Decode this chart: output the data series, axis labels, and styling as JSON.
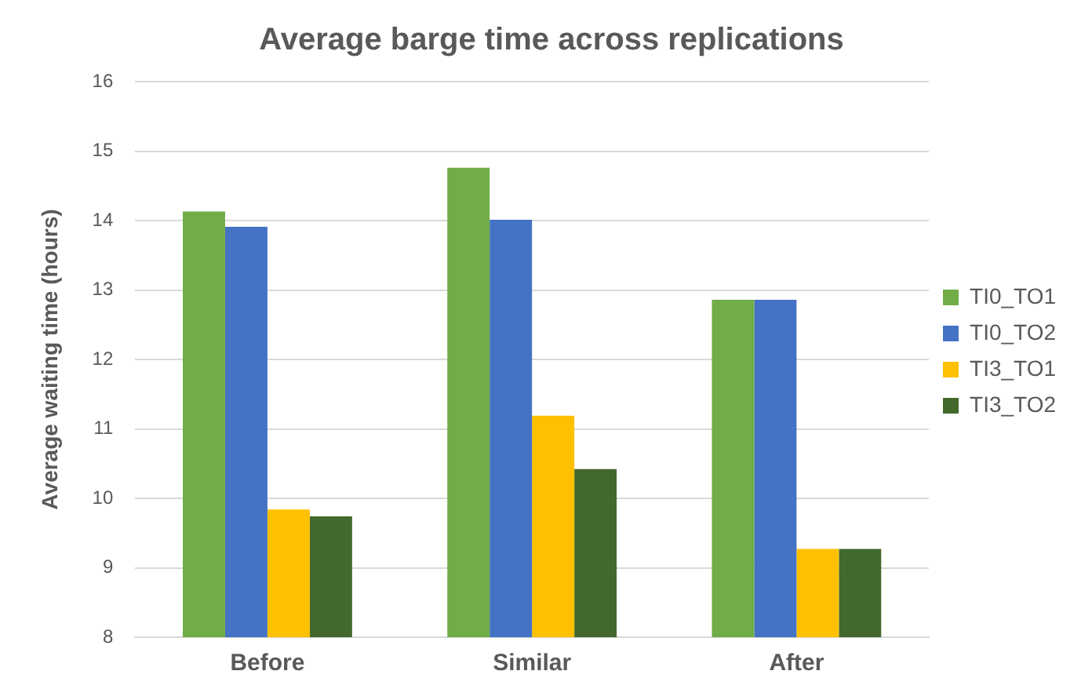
{
  "chart_data": {
    "type": "bar",
    "title": "Average barge time across replications",
    "ylabel": "Average waiting time (hours)",
    "categories": [
      "Before",
      "Similar",
      "After"
    ],
    "series": [
      {
        "name": "TI0_TO1",
        "color": "#70ad47",
        "values": [
          14.13,
          14.76,
          12.86
        ]
      },
      {
        "name": "TI0_TO2",
        "color": "#4472c4",
        "values": [
          13.91,
          14.01,
          12.86
        ]
      },
      {
        "name": "TI3_TO1",
        "color": "#ffc000",
        "values": [
          9.84,
          11.19,
          9.27
        ]
      },
      {
        "name": "TI3_TO2",
        "color": "#43682b",
        "values": [
          9.74,
          10.42,
          9.27
        ]
      }
    ],
    "ylim": [
      8,
      16
    ],
    "yticks": [
      8,
      9,
      10,
      11,
      12,
      13,
      14,
      15,
      16
    ],
    "grid": "y",
    "legend": "right"
  }
}
